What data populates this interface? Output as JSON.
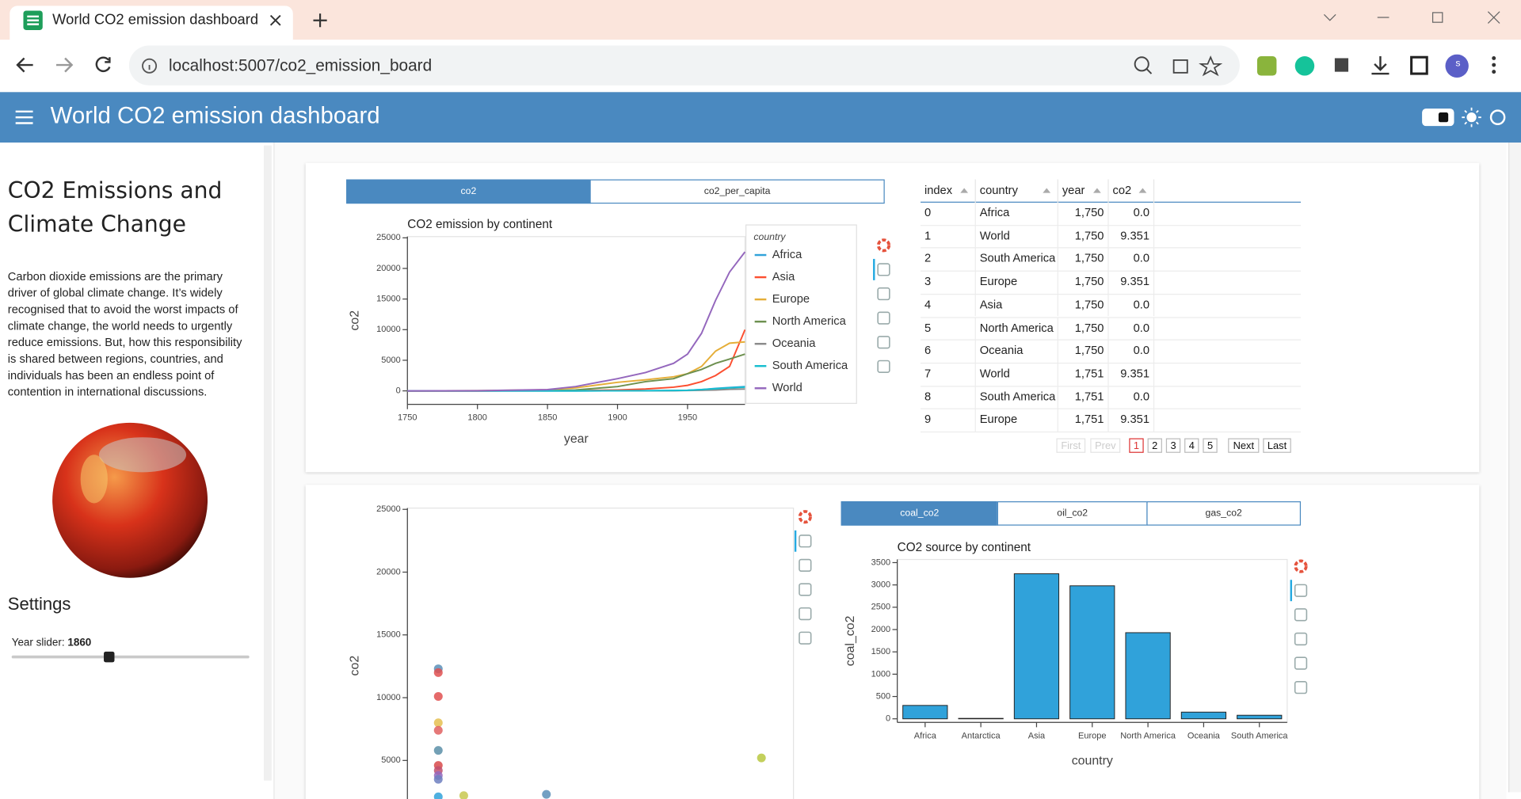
{
  "browser": {
    "tab_title": "World CO2 emission dashboard",
    "url": "localhost:5007/co2_emission_board",
    "profile": "s"
  },
  "header": {
    "title": "World CO2 emission dashboard"
  },
  "sidebar": {
    "title": "CO2 Emissions and Climate Change",
    "description": "Carbon dioxide emissions are the primary driver of global climate change. It’s widely recognised that to avoid the worst impacts of climate change, the world needs to urgently reduce emissions. But, how this responsibility is shared between regions, countries, and individuals has been an endless point of contention in international discussions.",
    "settings_title": "Settings",
    "slider_label": "Year slider:",
    "slider_value": 1860
  },
  "line_tabs": [
    "co2",
    "co2_per_capita"
  ],
  "line_chart": {
    "type": "line",
    "title": "CO2 emission by continent",
    "xlabel": "year",
    "ylabel": "co2",
    "legend_title": "country",
    "x": [
      1750,
      1800,
      1850,
      1870,
      1900,
      1920,
      1940,
      1950,
      1960,
      1970,
      1980,
      1991
    ],
    "series": [
      {
        "name": "Africa",
        "color": "#30a2da",
        "values": [
          0,
          0,
          0,
          1,
          10,
          20,
          50,
          100,
          200,
          400,
          550,
          700
        ]
      },
      {
        "name": "Asia",
        "color": "#fc4f30",
        "values": [
          0,
          0,
          10,
          30,
          150,
          300,
          600,
          900,
          1500,
          2500,
          4000,
          10000
        ]
      },
      {
        "name": "Europe",
        "color": "#e5ae38",
        "values": [
          9,
          30,
          180,
          500,
          1400,
          1800,
          2300,
          2800,
          4000,
          6500,
          7800,
          8000
        ]
      },
      {
        "name": "North America",
        "color": "#6d904f",
        "values": [
          0,
          1,
          20,
          150,
          700,
          1500,
          2000,
          2800,
          3500,
          4500,
          5200,
          6000
        ]
      },
      {
        "name": "Oceania",
        "color": "#8b8b8b",
        "values": [
          0,
          0,
          0,
          1,
          10,
          20,
          40,
          60,
          90,
          150,
          250,
          300
        ]
      },
      {
        "name": "South America",
        "color": "#17becf",
        "values": [
          0,
          0,
          0,
          1,
          10,
          30,
          60,
          100,
          200,
          350,
          500,
          600
        ]
      },
      {
        "name": "World",
        "color": "#9467bd",
        "values": [
          9,
          30,
          200,
          700,
          2000,
          3000,
          4500,
          6000,
          9400,
          14800,
          19400,
          22700
        ]
      }
    ],
    "xlim": [
      1750,
      1991
    ],
    "xticks": [
      1750,
      1800,
      1850,
      1900,
      1950
    ],
    "ylim": [
      -2200,
      25200
    ],
    "yticks": [
      0,
      5000,
      10000,
      15000,
      20000,
      25000
    ]
  },
  "table": {
    "columns": [
      "index",
      "country",
      "year",
      "co2"
    ],
    "rows": [
      [
        "0",
        "Africa",
        "1,750",
        "0.0"
      ],
      [
        "1",
        "World",
        "1,750",
        "9.351"
      ],
      [
        "2",
        "South America",
        "1,750",
        "0.0"
      ],
      [
        "3",
        "Europe",
        "1,750",
        "9.351"
      ],
      [
        "4",
        "Asia",
        "1,750",
        "0.0"
      ],
      [
        "5",
        "North America",
        "1,750",
        "0.0"
      ],
      [
        "6",
        "Oceania",
        "1,750",
        "0.0"
      ],
      [
        "7",
        "World",
        "1,751",
        "9.351"
      ],
      [
        "8",
        "South America",
        "1,751",
        "0.0"
      ],
      [
        "9",
        "Europe",
        "1,751",
        "9.351"
      ]
    ],
    "pagination": [
      "First",
      "Prev",
      "1",
      "2",
      "3",
      "4",
      "5",
      "Next",
      "Last"
    ]
  },
  "scatter_chart": {
    "type": "scatter",
    "ylabel": "co2",
    "x": [
      8,
      8,
      8,
      8,
      8,
      8,
      8,
      8,
      8,
      8,
      8,
      14.6,
      36,
      91.7
    ],
    "values": [
      12300,
      12000,
      10100,
      8000,
      7400,
      5800,
      4600,
      4200,
      3800,
      3500,
      2100,
      2200,
      2300,
      5200
    ],
    "colors": [
      "#5b8fb8",
      "#e05050",
      "#e05050",
      "#e5c050",
      "#e06060",
      "#5b8fa8",
      "#d84a4a",
      "#c05070",
      "#9467bd",
      "#6d7fc0",
      "#30a2da",
      "#c8c850",
      "#5b8fb8",
      "#b8c840"
    ],
    "xlim": [
      0,
      100
    ],
    "ylim": [
      0,
      25100
    ],
    "yticks": [
      5000,
      10000,
      15000,
      20000,
      25000
    ]
  },
  "bar_tabs": [
    "coal_co2",
    "oil_co2",
    "gas_co2"
  ],
  "bar_chart": {
    "type": "bar",
    "title": "CO2 source by continent",
    "xlabel": "country",
    "ylabel": "coal_co2",
    "categories": [
      "Africa",
      "Antarctica",
      "Asia",
      "Europe",
      "North America",
      "Oceania",
      "South America"
    ],
    "values": [
      300,
      10,
      3250,
      2980,
      1930,
      150,
      80
    ],
    "color": "#30a2da",
    "ylim": [
      -80,
      3570
    ],
    "yticks": [
      0,
      500,
      1000,
      1500,
      2000,
      2500,
      3000,
      3500
    ]
  }
}
